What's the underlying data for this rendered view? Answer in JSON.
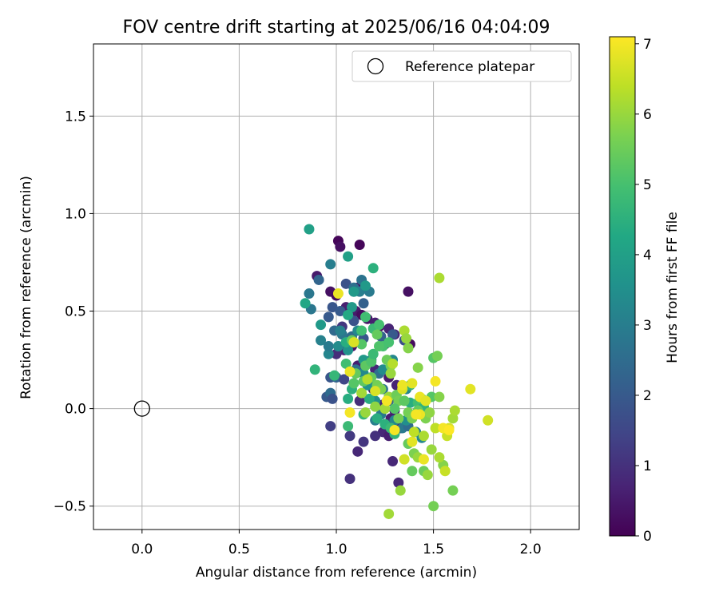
{
  "chart_data": {
    "type": "scatter",
    "title": "FOV centre drift starting at 2025/06/16 04:04:09",
    "xlabel": "Angular distance from reference (arcmin)",
    "ylabel": "Rotation from reference (arcmin)",
    "xlim": [
      -0.25,
      2.25
    ],
    "ylim": [
      -0.62,
      1.87
    ],
    "xticks": [
      0.0,
      0.5,
      1.0,
      1.5,
      2.0
    ],
    "xtick_labels": [
      "0.0",
      "0.5",
      "1.0",
      "1.5",
      "2.0"
    ],
    "yticks": [
      -0.5,
      0.0,
      0.5,
      1.0,
      1.5
    ],
    "ytick_labels": [
      "−0.5",
      "0.0",
      "0.5",
      "1.0",
      "1.5"
    ],
    "grid": true,
    "legend": {
      "position": "top-right",
      "entries": [
        "Reference platepar"
      ]
    },
    "reference_point": {
      "x": 0.0,
      "y": 0.0,
      "marker": "open-circle"
    },
    "colorbar": {
      "label": "Hours from first FF file",
      "colormap": "viridis",
      "range": [
        0,
        7.1
      ],
      "ticks": [
        0,
        1,
        2,
        3,
        4,
        5,
        6,
        7
      ],
      "tick_labels": [
        "0",
        "1",
        "2",
        "3",
        "4",
        "5",
        "6",
        "7"
      ]
    },
    "points": [
      [
        1.01,
        0.86,
        0.1
      ],
      [
        1.12,
        0.84,
        0.1
      ],
      [
        1.02,
        0.83,
        0.3
      ],
      [
        0.9,
        0.68,
        0.5
      ],
      [
        0.97,
        0.6,
        0.3
      ],
      [
        1.0,
        0.58,
        0.2
      ],
      [
        1.11,
        0.62,
        0.4
      ],
      [
        1.37,
        0.6,
        0.3
      ],
      [
        1.05,
        0.52,
        0.6
      ],
      [
        1.1,
        0.5,
        0.5
      ],
      [
        1.13,
        0.48,
        0.2
      ],
      [
        1.16,
        0.46,
        0.4
      ],
      [
        1.2,
        0.44,
        0.6
      ],
      [
        1.22,
        0.42,
        0.2
      ],
      [
        1.27,
        0.41,
        0.7
      ],
      [
        1.3,
        0.38,
        0.8
      ],
      [
        1.36,
        0.35,
        0.4
      ],
      [
        1.38,
        0.33,
        0.2
      ],
      [
        1.25,
        0.33,
        0.5
      ],
      [
        1.08,
        0.32,
        0.4
      ],
      [
        1.04,
        0.3,
        0.7
      ],
      [
        1.0,
        0.28,
        0.9
      ],
      [
        1.11,
        0.22,
        0.6
      ],
      [
        1.2,
        0.2,
        0.8
      ],
      [
        1.27,
        0.16,
        0.5
      ],
      [
        1.31,
        0.12,
        0.7
      ],
      [
        1.19,
        0.1,
        0.6
      ],
      [
        1.12,
        0.04,
        0.9
      ],
      [
        1.24,
        0.02,
        0.8
      ],
      [
        1.3,
        -0.01,
        0.7
      ],
      [
        1.28,
        -0.05,
        0.6
      ],
      [
        1.26,
        -0.08,
        0.9
      ],
      [
        1.33,
        -0.1,
        0.7
      ],
      [
        1.24,
        -0.12,
        0.8
      ],
      [
        1.27,
        -0.14,
        0.6
      ],
      [
        1.2,
        -0.14,
        1.0
      ],
      [
        1.14,
        -0.17,
        1.1
      ],
      [
        1.11,
        -0.22,
        0.8
      ],
      [
        1.29,
        -0.27,
        0.8
      ],
      [
        1.32,
        -0.38,
        0.8
      ],
      [
        1.07,
        -0.36,
        1.0
      ],
      [
        1.07,
        -0.14,
        1.2
      ],
      [
        0.97,
        -0.09,
        1.3
      ],
      [
        1.03,
        0.42,
        1.1
      ],
      [
        1.05,
        0.64,
        1.8
      ],
      [
        0.91,
        0.66,
        2.3
      ],
      [
        0.98,
        0.52,
        1.9
      ],
      [
        1.02,
        0.5,
        2.0
      ],
      [
        1.09,
        0.45,
        1.8
      ],
      [
        0.96,
        0.47,
        2.0
      ],
      [
        0.99,
        0.4,
        2.4
      ],
      [
        1.14,
        0.54,
        2.2
      ],
      [
        1.09,
        0.62,
        2.6
      ],
      [
        1.13,
        0.66,
        2.7
      ],
      [
        1.09,
        0.6,
        2.0
      ],
      [
        1.12,
        0.6,
        3.0
      ],
      [
        1.17,
        0.6,
        2.9
      ],
      [
        1.03,
        0.38,
        2.8
      ],
      [
        1.08,
        0.37,
        2.4
      ],
      [
        1.14,
        0.36,
        1.9
      ],
      [
        1.23,
        0.37,
        2.2
      ],
      [
        1.29,
        0.38,
        2.0
      ],
      [
        1.35,
        0.35,
        1.7
      ],
      [
        0.97,
        0.16,
        1.9
      ],
      [
        1.0,
        0.16,
        2.3
      ],
      [
        1.04,
        0.15,
        1.5
      ],
      [
        0.95,
        0.06,
        2.0
      ],
      [
        0.97,
        0.08,
        2.5
      ],
      [
        0.98,
        0.05,
        1.8
      ],
      [
        1.1,
        0.2,
        2.6
      ],
      [
        1.14,
        0.18,
        3.3
      ],
      [
        1.18,
        0.25,
        3.0
      ],
      [
        1.22,
        0.18,
        2.6
      ],
      [
        1.24,
        0.1,
        2.7
      ],
      [
        1.18,
        0.12,
        2.3
      ],
      [
        1.27,
        0.04,
        2.2
      ],
      [
        1.23,
        -0.03,
        2.9
      ],
      [
        1.2,
        -0.06,
        3.0
      ],
      [
        1.3,
        -0.06,
        3.2
      ],
      [
        1.34,
        -0.1,
        2.9
      ],
      [
        1.37,
        -0.09,
        2.5
      ],
      [
        1.02,
        0.4,
        3.1
      ],
      [
        0.97,
        0.74,
        3.0
      ],
      [
        0.86,
        0.59,
        2.8
      ],
      [
        0.87,
        0.51,
        2.8
      ],
      [
        0.92,
        0.35,
        3.1
      ],
      [
        0.96,
        0.28,
        3.2
      ],
      [
        0.96,
        0.32,
        2.9
      ],
      [
        1.01,
        0.32,
        3.4
      ],
      [
        1.06,
        0.3,
        3.6
      ],
      [
        1.08,
        0.52,
        3.8
      ],
      [
        1.15,
        0.63,
        3.8
      ],
      [
        1.09,
        0.6,
        3.8
      ],
      [
        1.11,
        0.4,
        3.3
      ],
      [
        1.14,
        0.25,
        3.8
      ],
      [
        1.16,
        0.12,
        3.6
      ],
      [
        1.2,
        0.04,
        3.5
      ],
      [
        1.24,
        0.2,
        3.4
      ],
      [
        1.29,
        0.25,
        3.3
      ],
      [
        1.36,
        0.1,
        3.2
      ],
      [
        1.36,
        -0.06,
        3.5
      ],
      [
        1.41,
        -0.12,
        3.1
      ],
      [
        1.44,
        -0.15,
        3.3
      ],
      [
        0.92,
        0.43,
        3.8
      ],
      [
        0.86,
        0.92,
        4.0
      ],
      [
        0.84,
        0.54,
        4.2
      ],
      [
        1.06,
        0.78,
        4.0
      ],
      [
        1.19,
        0.72,
        4.5
      ],
      [
        1.06,
        0.48,
        4.3
      ],
      [
        1.05,
        0.34,
        4.4
      ],
      [
        1.06,
        0.05,
        4.4
      ],
      [
        1.08,
        0.1,
        4.5
      ],
      [
        1.06,
        -0.09,
        4.8
      ],
      [
        1.17,
        0.05,
        4.4
      ],
      [
        1.14,
        -0.03,
        4.7
      ],
      [
        1.21,
        -0.05,
        4.4
      ],
      [
        1.25,
        -0.08,
        4.5
      ],
      [
        1.28,
        -0.1,
        4.8
      ],
      [
        1.3,
        -0.13,
        4.6
      ],
      [
        1.37,
        -0.18,
        5.4
      ],
      [
        1.38,
        0.12,
        4.6
      ],
      [
        1.38,
        0.03,
        4.4
      ],
      [
        1.42,
        0.03,
        4.9
      ],
      [
        1.45,
        0.01,
        4.6
      ],
      [
        0.89,
        0.2,
        4.6
      ],
      [
        0.99,
        0.17,
        4.7
      ],
      [
        1.05,
        0.23,
        4.9
      ],
      [
        1.08,
        0.35,
        5.4
      ],
      [
        1.13,
        0.4,
        4.9
      ],
      [
        1.15,
        0.47,
        4.9
      ],
      [
        1.19,
        0.41,
        4.8
      ],
      [
        1.22,
        0.43,
        5.0
      ],
      [
        1.21,
        0.38,
        5.4
      ],
      [
        1.24,
        0.32,
        5.0
      ],
      [
        1.27,
        0.34,
        5.0
      ],
      [
        1.13,
        0.33,
        5.2
      ],
      [
        1.15,
        0.22,
        5.3
      ],
      [
        1.18,
        0.24,
        5.1
      ],
      [
        1.19,
        0.28,
        4.8
      ],
      [
        1.22,
        0.32,
        5.1
      ],
      [
        1.26,
        0.25,
        5.5
      ],
      [
        1.28,
        0.22,
        5.6
      ],
      [
        1.1,
        0.18,
        5.4
      ],
      [
        1.09,
        0.13,
        5.2
      ],
      [
        1.14,
        0.14,
        5.3
      ],
      [
        1.18,
        0.16,
        5.4
      ],
      [
        1.21,
        0.12,
        5.6
      ],
      [
        1.23,
        0.1,
        5.7
      ],
      [
        1.27,
        0.06,
        6.0
      ],
      [
        1.31,
        0.07,
        5.5
      ],
      [
        1.32,
        0.04,
        5.6
      ],
      [
        1.35,
        0.04,
        5.3
      ],
      [
        1.3,
        0.0,
        5.2
      ],
      [
        1.32,
        -0.05,
        5.6
      ],
      [
        1.37,
        -0.02,
        5.6
      ],
      [
        1.39,
        -0.05,
        5.7
      ],
      [
        1.42,
        -0.01,
        5.4
      ],
      [
        1.46,
        -0.05,
        5.7
      ],
      [
        1.48,
        -0.02,
        5.9
      ],
      [
        1.44,
        0.05,
        5.3
      ],
      [
        1.49,
        0.06,
        5.2
      ],
      [
        1.53,
        0.06,
        5.8
      ],
      [
        1.5,
        0.26,
        5.2
      ],
      [
        1.52,
        0.27,
        5.6
      ],
      [
        1.42,
        0.21,
        5.8
      ],
      [
        1.37,
        0.31,
        5.8
      ],
      [
        1.35,
        0.4,
        6.2
      ],
      [
        1.36,
        0.36,
        6.0
      ],
      [
        1.29,
        0.23,
        6.3
      ],
      [
        1.28,
        0.18,
        6.0
      ],
      [
        1.16,
        0.15,
        6.3
      ],
      [
        1.13,
        0.08,
        6.1
      ],
      [
        1.15,
        -0.02,
        6.0
      ],
      [
        1.2,
        0.01,
        5.9
      ],
      [
        1.25,
        0.0,
        6.1
      ],
      [
        1.4,
        -0.23,
        5.7
      ],
      [
        1.42,
        -0.25,
        6.0
      ],
      [
        1.39,
        -0.32,
        5.4
      ],
      [
        1.45,
        -0.32,
        5.5
      ],
      [
        1.47,
        -0.34,
        6.0
      ],
      [
        1.33,
        -0.42,
        6.0
      ],
      [
        1.27,
        -0.54,
        6.1
      ],
      [
        1.5,
        -0.5,
        5.6
      ],
      [
        1.6,
        -0.42,
        5.6
      ],
      [
        1.55,
        -0.29,
        5.8
      ],
      [
        1.53,
        -0.25,
        6.2
      ],
      [
        1.56,
        -0.32,
        6.5
      ],
      [
        1.49,
        -0.21,
        6.0
      ],
      [
        1.45,
        -0.14,
        6.2
      ],
      [
        1.51,
        -0.1,
        6.4
      ],
      [
        1.58,
        -0.1,
        6.7
      ],
      [
        1.6,
        -0.05,
        6.1
      ],
      [
        1.61,
        -0.01,
        6.2
      ],
      [
        1.57,
        -0.14,
        6.5
      ],
      [
        1.53,
        0.67,
        6.2
      ],
      [
        1.69,
        0.1,
        6.8
      ],
      [
        1.78,
        -0.06,
        6.6
      ],
      [
        1.43,
        -0.03,
        6.9
      ],
      [
        1.39,
        -0.17,
        6.8
      ],
      [
        1.4,
        -0.12,
        6.4
      ],
      [
        1.35,
        -0.26,
        6.6
      ],
      [
        1.34,
        0.1,
        6.7
      ],
      [
        1.39,
        0.13,
        6.8
      ],
      [
        1.43,
        0.06,
        6.9
      ],
      [
        1.41,
        -0.03,
        7.0
      ],
      [
        1.46,
        0.04,
        6.8
      ],
      [
        1.51,
        0.14,
        7.0
      ],
      [
        1.55,
        -0.1,
        7.0
      ],
      [
        1.58,
        -0.11,
        7.1
      ],
      [
        1.45,
        -0.26,
        6.9
      ],
      [
        1.3,
        -0.11,
        7.0
      ],
      [
        1.26,
        0.04,
        7.0
      ],
      [
        1.07,
        -0.02,
        7.0
      ],
      [
        1.07,
        0.19,
        6.9
      ],
      [
        1.01,
        0.59,
        6.9
      ],
      [
        1.09,
        0.34,
        6.7
      ],
      [
        1.2,
        0.09,
        6.7
      ],
      [
        1.34,
        0.12,
        6.9
      ]
    ]
  }
}
